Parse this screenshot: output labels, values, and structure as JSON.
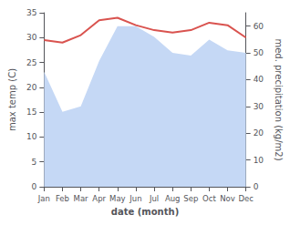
{
  "chart_data": {
    "type": "line",
    "xlabel": "date (month)",
    "ylabel": "max temp (C)",
    "y2label": "med. precipitation (kg/m2)",
    "categories": [
      "Jan",
      "Feb",
      "Mar",
      "Apr",
      "May",
      "Jun",
      "Jul",
      "Aug",
      "Sep",
      "Oct",
      "Nov",
      "Dec"
    ],
    "series": [
      {
        "type": "area",
        "axis": "y2",
        "color": "#c5d8f5",
        "values": [
          43,
          28,
          30,
          47,
          60,
          60,
          56,
          50,
          49,
          55,
          51,
          50
        ]
      },
      {
        "type": "line",
        "color": "#d9534f",
        "values": [
          29.5,
          29.0,
          30.5,
          33.5,
          34.0,
          32.5,
          31.5,
          31.0,
          31.5,
          33.0,
          32.5,
          30.0
        ]
      }
    ],
    "ylim": [
      0,
      35
    ],
    "yticks": [
      0,
      5,
      10,
      15,
      20,
      25,
      30,
      35
    ],
    "y2lim": [
      0,
      65
    ],
    "y2ticks": [
      0,
      10,
      20,
      30,
      40,
      50,
      60
    ],
    "grid": false
  }
}
